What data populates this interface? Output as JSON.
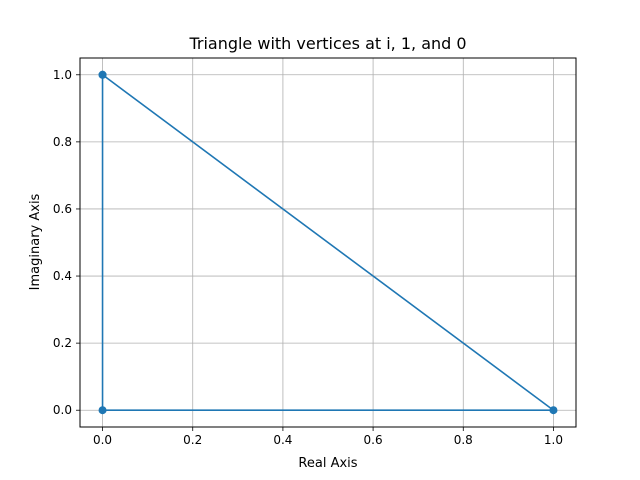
{
  "chart_data": {
    "type": "line",
    "title": "Triangle with vertices at i, 1, and 0",
    "xlabel": "Real Axis",
    "ylabel": "Imaginary Axis",
    "xlim": [
      -0.05,
      1.05
    ],
    "ylim": [
      -0.05,
      1.05
    ],
    "x_ticks": [
      0.0,
      0.2,
      0.4,
      0.6,
      0.8,
      1.0
    ],
    "x_tick_labels": [
      "0.0",
      "0.2",
      "0.4",
      "0.6",
      "0.8",
      "1.0"
    ],
    "y_ticks": [
      0.0,
      0.2,
      0.4,
      0.6,
      0.8,
      1.0
    ],
    "y_tick_labels": [
      "0.0",
      "0.2",
      "0.4",
      "0.6",
      "0.8",
      "1.0"
    ],
    "grid": true,
    "series": [
      {
        "x": [
          0,
          1,
          0,
          0
        ],
        "y": [
          1,
          0,
          0,
          1
        ],
        "color": "#1f77b4",
        "marker": "circle"
      }
    ]
  }
}
